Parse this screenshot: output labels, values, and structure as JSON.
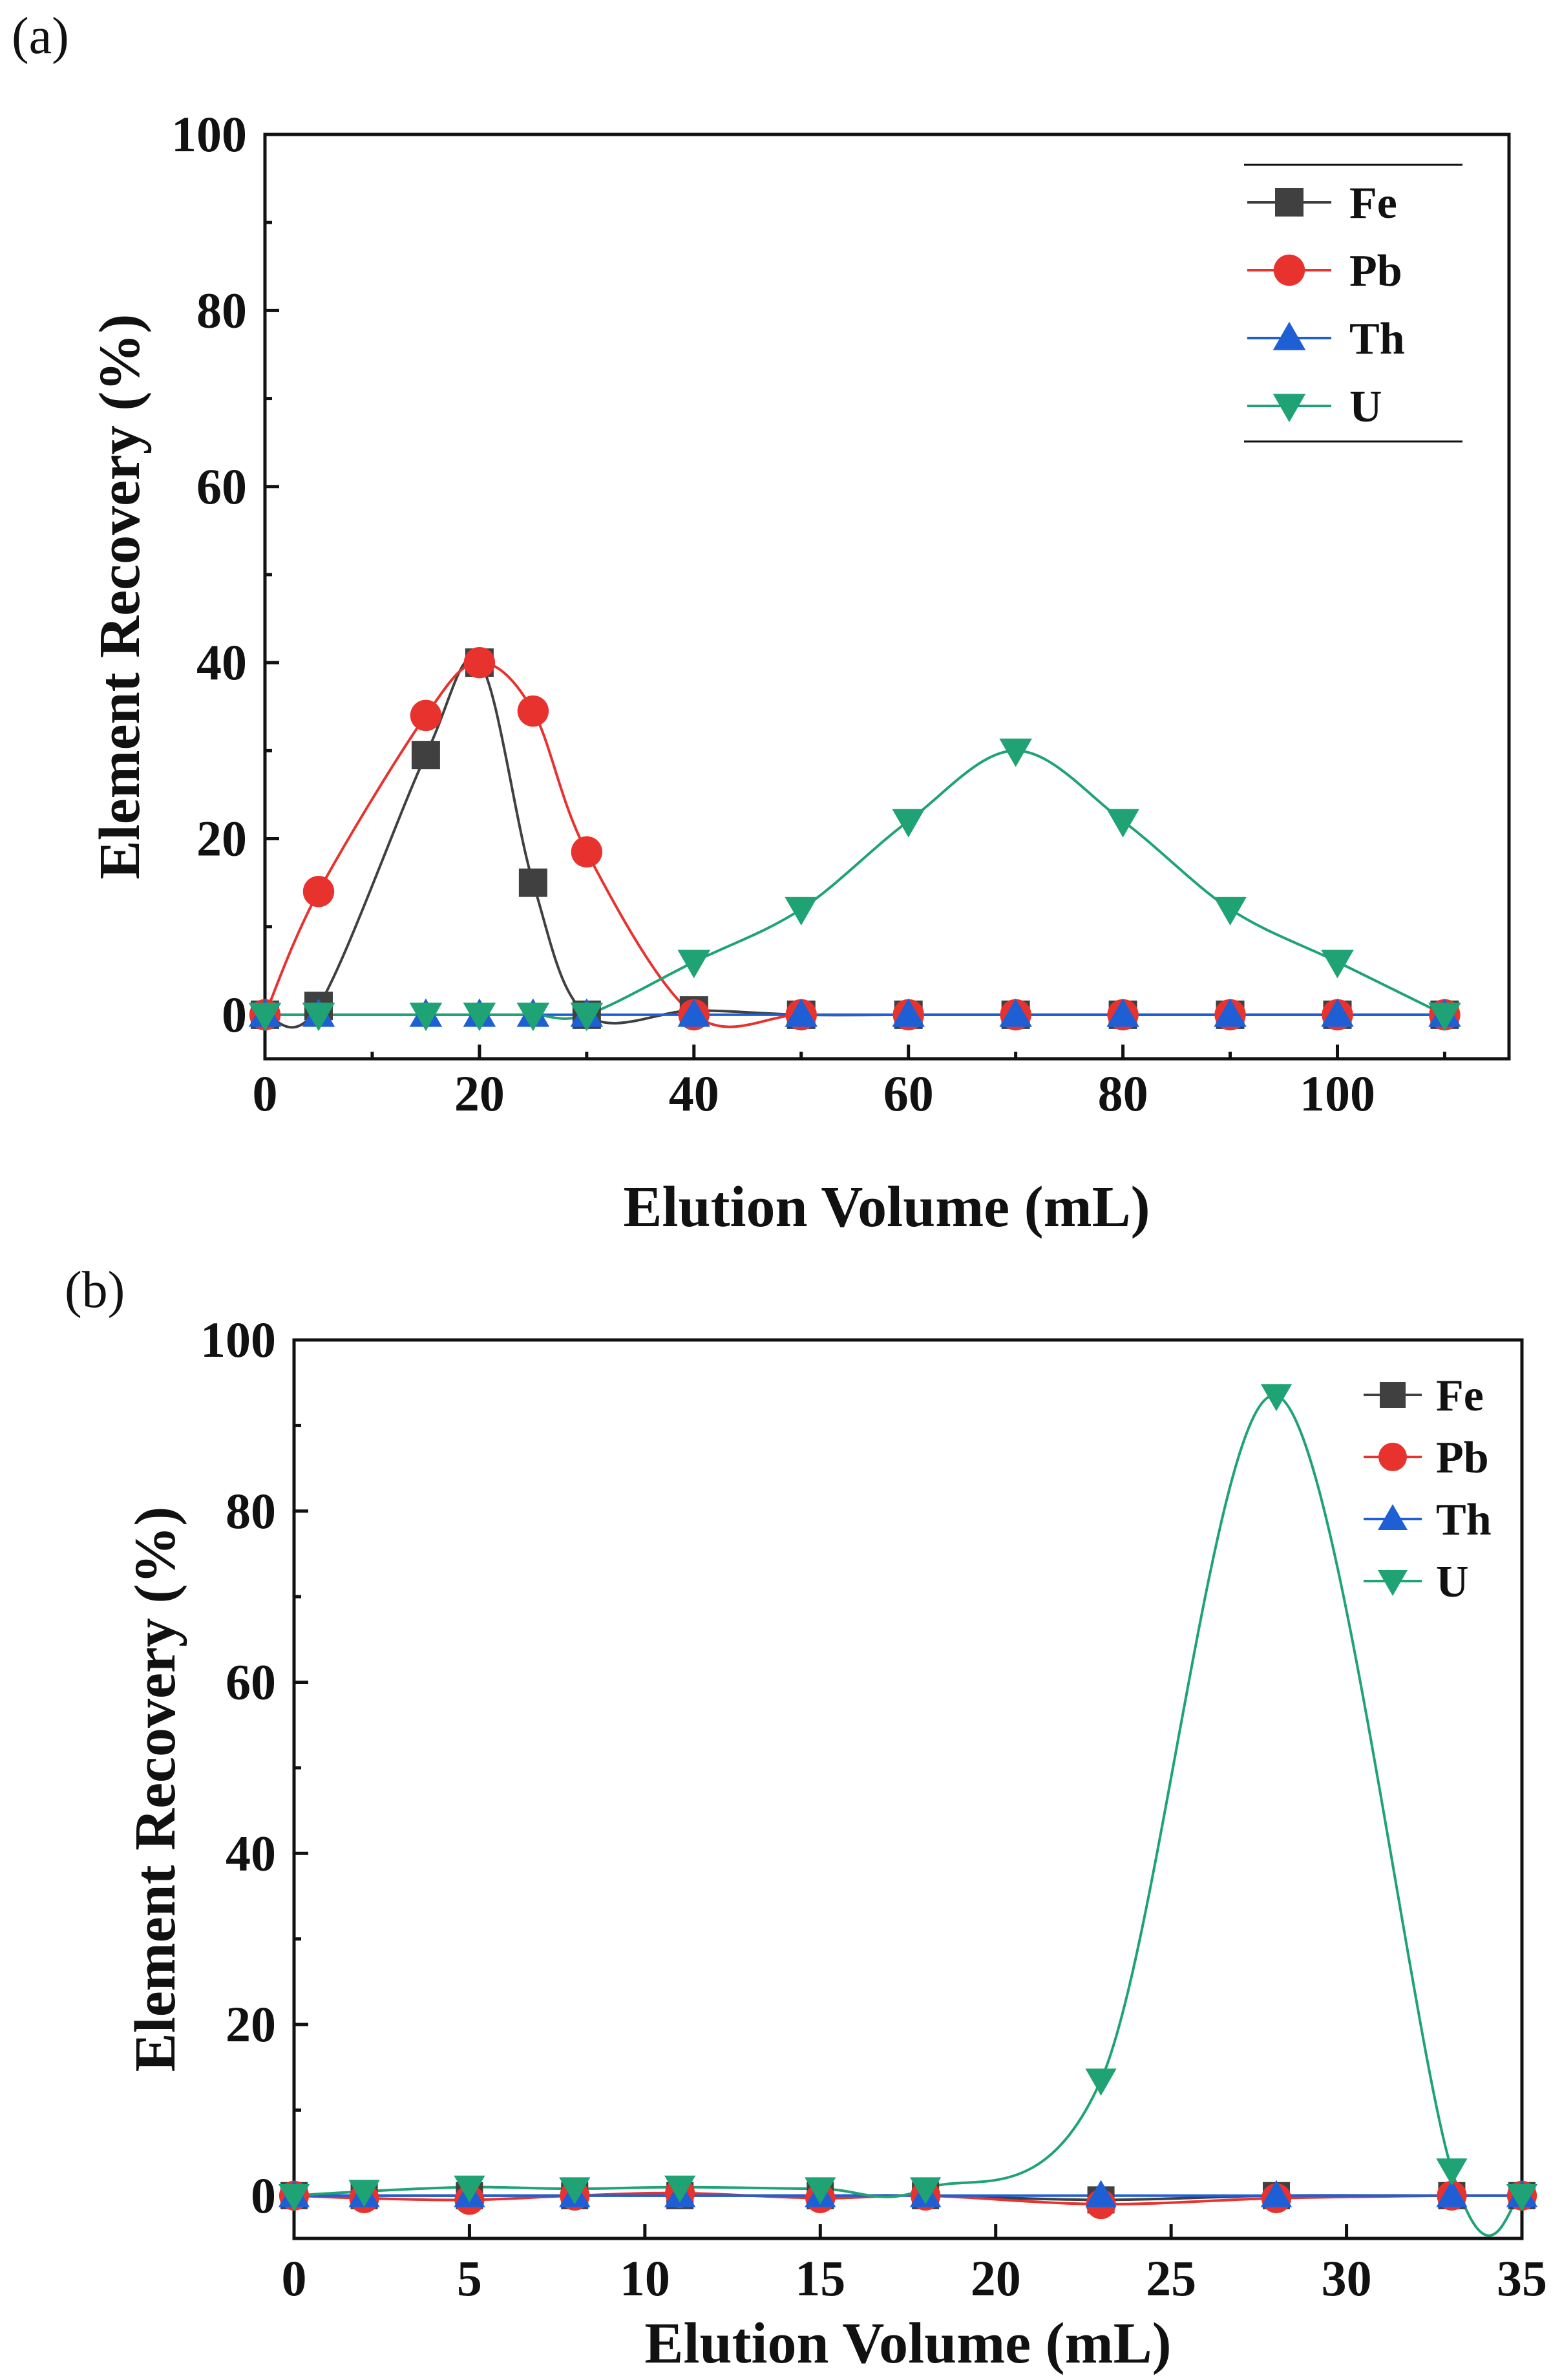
{
  "chart_data": [
    {
      "type": "line",
      "panel_label": "(a)",
      "xlabel": "Elution Volume (mL)",
      "ylabel": "Element Recovery (%)",
      "xlim": [
        0,
        116
      ],
      "ylim": [
        -5,
        100
      ],
      "xticks": [
        0,
        20,
        40,
        60,
        80,
        100
      ],
      "yticks": [
        0,
        20,
        40,
        60,
        80,
        100
      ],
      "legend": "top-right",
      "series": [
        {
          "name": "Fe",
          "color": "#404040",
          "marker": "square",
          "x": [
            0,
            5,
            15,
            20,
            25,
            30,
            40,
            50,
            60,
            70,
            80,
            90,
            100,
            110
          ],
          "y": [
            0,
            1,
            29.5,
            40,
            15,
            0,
            0.5,
            0,
            0,
            0,
            0,
            0,
            0,
            0
          ]
        },
        {
          "name": "Pb",
          "color": "#e8322e",
          "marker": "circle",
          "x": [
            0,
            5,
            15,
            20,
            25,
            30,
            40,
            50,
            60,
            70,
            80,
            90,
            100,
            110
          ],
          "y": [
            0,
            14,
            34,
            40,
            34.5,
            18.5,
            0,
            0,
            0,
            0,
            0,
            0,
            0,
            0
          ]
        },
        {
          "name": "Th",
          "color": "#1f5fd6",
          "marker": "triangle-up",
          "x": [
            0,
            5,
            15,
            20,
            25,
            30,
            40,
            50,
            60,
            70,
            80,
            90,
            100,
            110
          ],
          "y": [
            0,
            0,
            0,
            0,
            0,
            0,
            0,
            0,
            0,
            0,
            0,
            0,
            0,
            0
          ]
        },
        {
          "name": "U",
          "color": "#1fa374",
          "marker": "triangle-down",
          "x": [
            0,
            5,
            15,
            20,
            25,
            30,
            40,
            50,
            60,
            70,
            80,
            90,
            100,
            110
          ],
          "y": [
            0,
            0,
            0,
            0,
            0,
            0,
            6,
            12,
            22,
            30,
            22,
            12,
            6,
            0
          ]
        }
      ]
    },
    {
      "type": "line",
      "panel_label": "(b)",
      "xlabel": "Elution Volume (mL)",
      "ylabel": "Element Recovery (%)",
      "xlim": [
        0,
        35
      ],
      "ylim": [
        -5,
        100
      ],
      "xticks": [
        0,
        5,
        10,
        15,
        20,
        25,
        30,
        35
      ],
      "yticks": [
        0,
        20,
        40,
        60,
        80,
        100
      ],
      "legend": "top-right",
      "series": [
        {
          "name": "Fe",
          "color": "#404040",
          "marker": "square",
          "x": [
            0,
            2,
            5,
            8,
            11,
            15,
            18,
            23,
            28,
            33,
            35
          ],
          "y": [
            0,
            0,
            0,
            0,
            0,
            0,
            0,
            -0.5,
            0,
            0,
            0
          ]
        },
        {
          "name": "Pb",
          "color": "#e8322e",
          "marker": "circle",
          "x": [
            0,
            2,
            5,
            8,
            11,
            15,
            18,
            23,
            28,
            33,
            35
          ],
          "y": [
            0,
            -0.3,
            -0.5,
            0,
            0.3,
            -0.3,
            0,
            -1,
            -0.3,
            0,
            0
          ]
        },
        {
          "name": "Th",
          "color": "#1f5fd6",
          "marker": "triangle-up",
          "x": [
            0,
            2,
            5,
            8,
            11,
            15,
            18,
            23,
            28,
            33,
            35
          ],
          "y": [
            0,
            0,
            0,
            0,
            0,
            0,
            0,
            0,
            0,
            0,
            0
          ]
        },
        {
          "name": "U",
          "color": "#1fa374",
          "marker": "triangle-down",
          "x": [
            0,
            2,
            5,
            8,
            11,
            15,
            18,
            23,
            28,
            33,
            35
          ],
          "y": [
            0,
            0.5,
            1,
            0.8,
            1,
            0.8,
            0.8,
            13.5,
            93.5,
            3,
            0
          ]
        }
      ]
    }
  ]
}
